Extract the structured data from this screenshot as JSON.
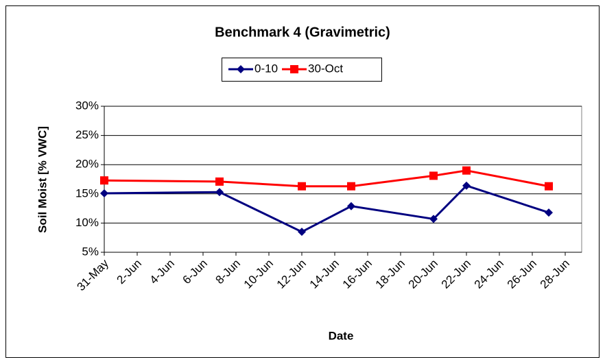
{
  "chart_data": {
    "type": "line",
    "title": "Benchmark 4 (Gravimetric)",
    "x_label": "Date",
    "y_label": "Soil Moist [% VWC]",
    "x": [
      "31-May",
      "7-Jun",
      "12-Jun",
      "15-Jun",
      "20-Jun",
      "22-Jun",
      "27-Jun"
    ],
    "xlim": [
      "31-May",
      "29-Jun"
    ],
    "xticks": [
      "31-May",
      "2-Jun",
      "4-Jun",
      "6-Jun",
      "8-Jun",
      "10-Jun",
      "12-Jun",
      "14-Jun",
      "16-Jun",
      "18-Jun",
      "20-Jun",
      "22-Jun",
      "24-Jun",
      "26-Jun",
      "28-Jun"
    ],
    "ylim": [
      5,
      30
    ],
    "yticks": [
      {
        "value": 5,
        "label": "5%"
      },
      {
        "value": 10,
        "label": "10%"
      },
      {
        "value": 15,
        "label": "15%"
      },
      {
        "value": 20,
        "label": "20%"
      },
      {
        "value": 25,
        "label": "25%"
      },
      {
        "value": 30,
        "label": "30%"
      }
    ],
    "grid": true,
    "legend": "top",
    "series": [
      {
        "name": "0-10",
        "color": "#000080",
        "marker": "diamond",
        "values": [
          15.1,
          15.3,
          8.5,
          12.9,
          10.7,
          16.4,
          11.8
        ]
      },
      {
        "name": "30-Oct",
        "color": "#ff0000",
        "marker": "square",
        "values": [
          17.3,
          17.1,
          16.3,
          16.3,
          18.1,
          19.0,
          16.3
        ]
      }
    ]
  }
}
